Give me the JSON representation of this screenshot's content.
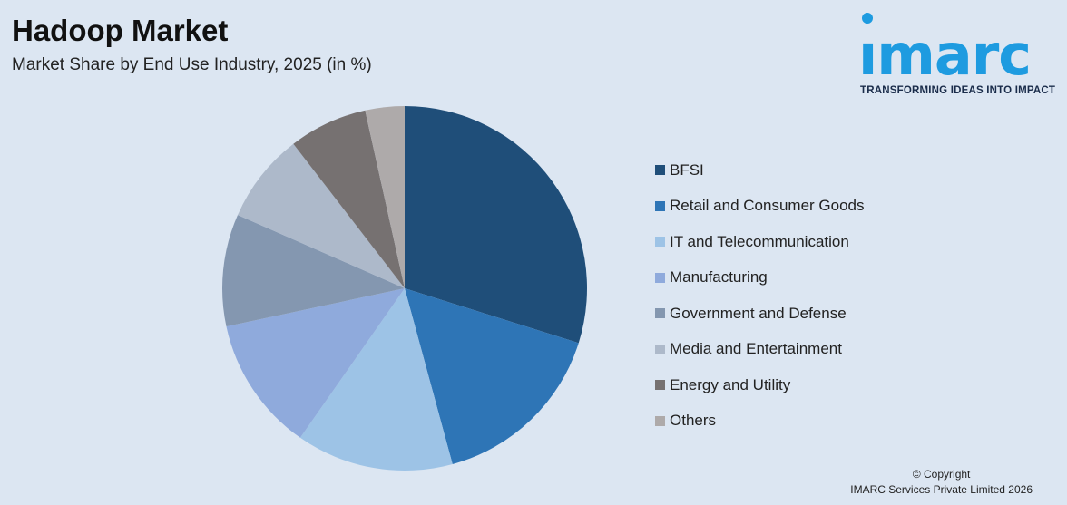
{
  "header": {
    "title": "Hadoop Market",
    "subtitle": "Market Share by End Use Industry, 2025 (in %)"
  },
  "logo": {
    "word": "ımarc",
    "tagline": "TRANSFORMING IDEAS INTO IMPACT",
    "color": "#1e9be0"
  },
  "chart_data": {
    "type": "pie",
    "title": "Hadoop Market",
    "subtitle": "Market Share by End Use Industry, 2025 (in %)",
    "legend_position": "right",
    "start": "top, clockwise",
    "slices": [
      {
        "label": "BFSI",
        "value": 30,
        "color": "#1f4e79"
      },
      {
        "label": "Retail and Consumer Goods",
        "value": 16,
        "color": "#2e75b6"
      },
      {
        "label": "IT and Telecommunication",
        "value": 14,
        "color": "#9dc3e6"
      },
      {
        "label": "Manufacturing",
        "value": 12,
        "color": "#8faadc"
      },
      {
        "label": "Government and Defense",
        "value": 10,
        "color": "#8497b0"
      },
      {
        "label": "Media and Entertainment",
        "value": 8,
        "color": "#adb9ca"
      },
      {
        "label": "Energy and Utility",
        "value": 7,
        "color": "#767171"
      },
      {
        "label": "Others",
        "value": 3.5,
        "color": "#aeaaaa"
      }
    ]
  },
  "footer": {
    "copyright_line1": "© Copyright",
    "copyright_line2": "IMARC Services Private Limited 2026"
  }
}
